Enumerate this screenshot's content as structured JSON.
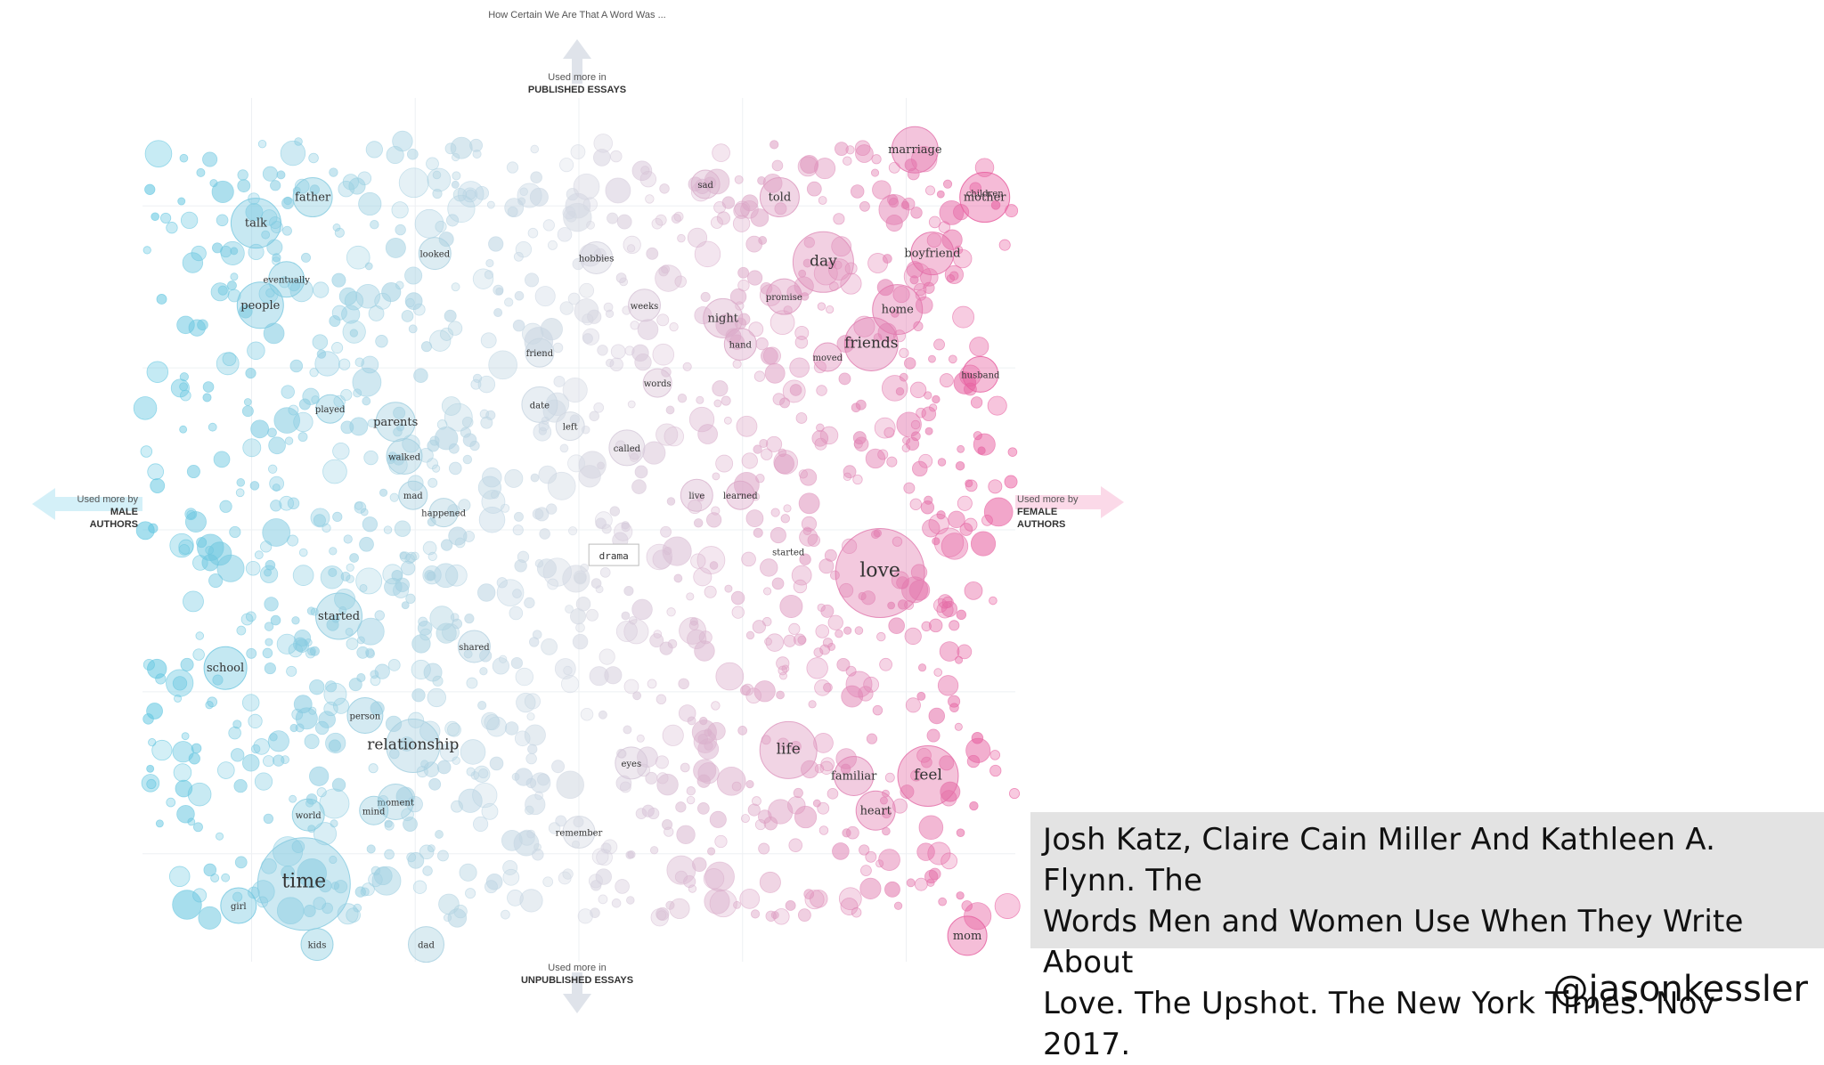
{
  "chart_data": {
    "type": "scatter",
    "title": "How Certain We Are That A Word Was ...",
    "axes": {
      "top": {
        "line1": "Used more in",
        "line2": "PUBLISHED ESSAYS"
      },
      "bottom": {
        "line1": "Used more in",
        "line2": "UNPUBLISHED ESSAYS"
      },
      "left": {
        "line1": "Used more by",
        "line2": "MALE",
        "line3": "AUTHORS"
      },
      "right": {
        "line1": "Used more by",
        "line2": "FEMALE",
        "line3": "AUTHORS"
      }
    },
    "xlim": [
      -1,
      1
    ],
    "ylim": [
      -1,
      1
    ],
    "grid": true,
    "colors": {
      "male": "#5bc4e0",
      "neutral": "#d4d8e2",
      "female": "#e8559a"
    },
    "labeled_points": [
      {
        "word": "marriage",
        "x": 0.77,
        "y": 0.88,
        "r": 26
      },
      {
        "word": "mother",
        "x": 0.93,
        "y": 0.77,
        "r": 28
      },
      {
        "word": "children",
        "x": 0.93,
        "y": 0.78,
        "r": 0
      },
      {
        "word": "told",
        "x": 0.46,
        "y": 0.77,
        "r": 22
      },
      {
        "word": "boyfriend",
        "x": 0.81,
        "y": 0.64,
        "r": 24
      },
      {
        "word": "day",
        "x": 0.56,
        "y": 0.62,
        "r": 34
      },
      {
        "word": "home",
        "x": 0.73,
        "y": 0.51,
        "r": 28
      },
      {
        "word": "night",
        "x": 0.33,
        "y": 0.49,
        "r": 22
      },
      {
        "word": "friends",
        "x": 0.67,
        "y": 0.43,
        "r": 30
      },
      {
        "word": "hand",
        "x": 0.37,
        "y": 0.43,
        "r": 18
      },
      {
        "word": "husband",
        "x": 0.92,
        "y": 0.36,
        "r": 20
      },
      {
        "word": "love",
        "x": 0.69,
        "y": -0.1,
        "r": 50
      },
      {
        "word": "live",
        "x": 0.27,
        "y": 0.08,
        "r": 18
      },
      {
        "word": "called",
        "x": 0.11,
        "y": 0.19,
        "r": 20
      },
      {
        "word": "weeks",
        "x": 0.15,
        "y": 0.52,
        "r": 18
      },
      {
        "word": "date",
        "x": -0.09,
        "y": 0.29,
        "r": 20
      },
      {
        "word": "life",
        "x": 0.48,
        "y": -0.51,
        "r": 32
      },
      {
        "word": "feel",
        "x": 0.8,
        "y": -0.57,
        "r": 34
      },
      {
        "word": "familiar",
        "x": 0.63,
        "y": -0.57,
        "r": 22
      },
      {
        "word": "heart",
        "x": 0.68,
        "y": -0.65,
        "r": 22
      },
      {
        "word": "eyes",
        "x": 0.12,
        "y": -0.54,
        "r": 18
      },
      {
        "word": "mom",
        "x": 0.89,
        "y": -0.94,
        "r": 22
      },
      {
        "word": "father",
        "x": -0.61,
        "y": 0.77,
        "r": 22
      },
      {
        "word": "talk",
        "x": -0.74,
        "y": 0.71,
        "r": 28
      },
      {
        "word": "people",
        "x": -0.73,
        "y": 0.52,
        "r": 26
      },
      {
        "word": "school",
        "x": -0.81,
        "y": -0.32,
        "r": 24
      },
      {
        "word": "started",
        "x": -0.55,
        "y": -0.2,
        "r": 26
      },
      {
        "word": "relationship",
        "x": -0.38,
        "y": -0.5,
        "r": 30
      },
      {
        "word": "person",
        "x": -0.49,
        "y": -0.43,
        "r": 20
      },
      {
        "word": "parents",
        "x": -0.42,
        "y": 0.25,
        "r": 22
      },
      {
        "word": "walked",
        "x": -0.4,
        "y": 0.17,
        "r": 20
      },
      {
        "word": "time",
        "x": -0.63,
        "y": -0.82,
        "r": 52
      },
      {
        "word": "world",
        "x": -0.62,
        "y": -0.66,
        "r": 18
      },
      {
        "word": "girl",
        "x": -0.78,
        "y": -0.87,
        "r": 20
      },
      {
        "word": "kids",
        "x": -0.6,
        "y": -0.96,
        "r": 18
      },
      {
        "word": "dad",
        "x": -0.35,
        "y": -0.96,
        "r": 20
      },
      {
        "word": "moment",
        "x": -0.42,
        "y": -0.63,
        "r": 20
      },
      {
        "word": "mind",
        "x": -0.47,
        "y": -0.65,
        "r": 16
      },
      {
        "word": "eventually",
        "x": -0.67,
        "y": 0.58,
        "r": 20
      },
      {
        "word": "looked",
        "x": -0.33,
        "y": 0.64,
        "r": 18
      },
      {
        "word": "hobbies",
        "x": 0.04,
        "y": 0.63,
        "r": 18
      },
      {
        "word": "sad",
        "x": 0.29,
        "y": 0.8,
        "r": 16
      },
      {
        "word": "played",
        "x": -0.57,
        "y": 0.28,
        "r": 16
      },
      {
        "word": "friend",
        "x": -0.09,
        "y": 0.41,
        "r": 16
      },
      {
        "word": "words",
        "x": 0.18,
        "y": 0.34,
        "r": 16
      },
      {
        "word": "learned",
        "x": 0.37,
        "y": 0.08,
        "r": 16
      },
      {
        "word": "started",
        "x": 0.48,
        "y": -0.05,
        "r": 0
      },
      {
        "word": "shared",
        "x": -0.24,
        "y": -0.27,
        "r": 18
      },
      {
        "word": "remember",
        "x": 0.0,
        "y": -0.7,
        "r": 18
      },
      {
        "word": "moved",
        "x": 0.57,
        "y": 0.4,
        "r": 16
      },
      {
        "word": "promise",
        "x": 0.47,
        "y": 0.54,
        "r": 20
      },
      {
        "word": "left",
        "x": -0.02,
        "y": 0.24,
        "r": 16
      },
      {
        "word": "mad",
        "x": -0.38,
        "y": 0.08,
        "r": 16
      },
      {
        "word": "happened",
        "x": -0.31,
        "y": 0.04,
        "r": 16
      },
      {
        "word": "drama",
        "x": 0.08,
        "y": -0.06,
        "r": 0
      }
    ]
  },
  "caption": {
    "line1": "Josh Katz, Claire Cain Miller And Kathleen A. Flynn. The",
    "line2": "Words Men and Women Use When They Write About",
    "line3": "Love. The Upshot. The New York Times. Nov 2017."
  },
  "handle": "@jasonkessler"
}
